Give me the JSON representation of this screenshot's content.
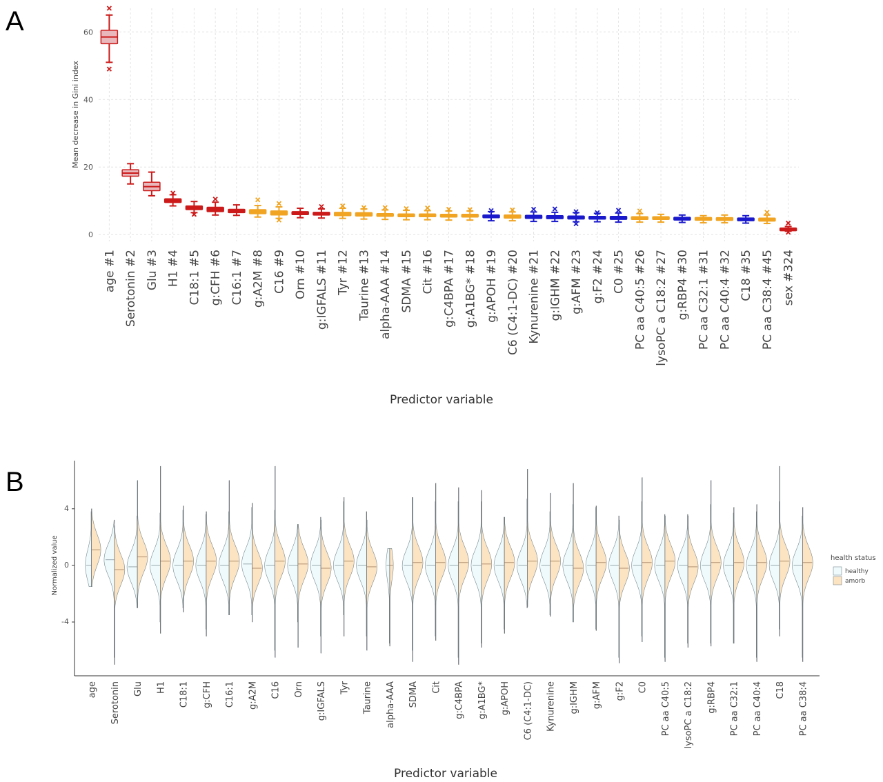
{
  "panels": [
    {
      "letter": "A"
    },
    {
      "letter": "B"
    }
  ],
  "chart_data": [
    {
      "type": "box",
      "panel": "A",
      "title": "",
      "xlabel": "Predictor variable",
      "ylabel": "Mean decrease in Gini index",
      "ylim": [
        -2,
        67
      ],
      "yticks": [
        0,
        20,
        40,
        60
      ],
      "grid": true,
      "colors": {
        "red": "#cc1a1a",
        "orange": "#f0a422",
        "blue": "#1a1acc",
        "fill": "#e8b8bc"
      },
      "categories": [
        "age #1",
        "Serotonin #2",
        "Glu #3",
        "H1 #4",
        "C18:1 #5",
        "g:CFH #6",
        "C16:1 #7",
        "g:A2M #8",
        "C16 #9",
        "Orn #10",
        "g:IGFALS #11",
        "Tyr #12",
        "Taurine #13",
        "alpha-AAA #14",
        "SDMA #15",
        "Cit #16",
        "g:C4BPA #17",
        "g:A1BG* #18",
        "g:APOH #19",
        "C6 (C4:1-DC) #20",
        "Kynurenine #21",
        "g:IGHM #22",
        "g:AFM #23",
        "g:F2 #24",
        "C0 #25",
        "PC aa C40:5 #26",
        "lysoPC a C18:2 #27",
        "g:RBP4 #30",
        "PC aa C32:1 #31",
        "PC aa C40:4 #32",
        "C18 #35",
        "PC aa C38:4 #45",
        "sex #324"
      ],
      "groups": [
        "red",
        "red",
        "red",
        "red",
        "red",
        "red",
        "red",
        "orange",
        "orange",
        "red",
        "red",
        "orange",
        "orange",
        "orange",
        "orange",
        "orange",
        "orange",
        "orange",
        "blue",
        "orange",
        "blue",
        "blue",
        "blue",
        "blue",
        "blue",
        "orange",
        "orange",
        "blue",
        "orange",
        "orange",
        "blue",
        "orange",
        "red"
      ],
      "boxes": [
        {
          "min": 51,
          "q1": 56.5,
          "median": 58.5,
          "q3": 60.5,
          "max": 65,
          "outliers": [
            49,
            67
          ]
        },
        {
          "min": 15,
          "q1": 17.3,
          "median": 18.2,
          "q3": 19.2,
          "max": 21,
          "outliers": []
        },
        {
          "min": 11.5,
          "q1": 13,
          "median": 14.2,
          "q3": 15.5,
          "max": 18.5,
          "outliers": []
        },
        {
          "min": 8.5,
          "q1": 9.5,
          "median": 10,
          "q3": 10.6,
          "max": 11.8,
          "outliers": [
            12.3
          ]
        },
        {
          "min": 6.5,
          "q1": 7.4,
          "median": 8,
          "q3": 8.5,
          "max": 9.8,
          "outliers": [
            6
          ]
        },
        {
          "min": 5.8,
          "q1": 6.8,
          "median": 7.5,
          "q3": 8.1,
          "max": 9.6,
          "outliers": [
            10.5
          ]
        },
        {
          "min": 5.7,
          "q1": 6.5,
          "median": 7,
          "q3": 7.5,
          "max": 8.8,
          "outliers": []
        },
        {
          "min": 5.2,
          "q1": 6.2,
          "median": 6.8,
          "q3": 7.4,
          "max": 8.6,
          "outliers": [
            10.3
          ]
        },
        {
          "min": 4.8,
          "q1": 5.8,
          "median": 6.4,
          "q3": 7,
          "max": 8.2,
          "outliers": [
            9.2,
            4.3
          ]
        },
        {
          "min": 5,
          "q1": 5.9,
          "median": 6.3,
          "q3": 6.8,
          "max": 7.8,
          "outliers": []
        },
        {
          "min": 4.9,
          "q1": 5.8,
          "median": 6.2,
          "q3": 6.6,
          "max": 7.6,
          "outliers": [
            8.3
          ]
        },
        {
          "min": 4.8,
          "q1": 5.6,
          "median": 6.1,
          "q3": 6.6,
          "max": 7.8,
          "outliers": [
            8.5
          ]
        },
        {
          "min": 4.6,
          "q1": 5.5,
          "median": 6,
          "q3": 6.5,
          "max": 7.6,
          "outliers": [
            8
          ]
        },
        {
          "min": 4.5,
          "q1": 5.4,
          "median": 5.8,
          "q3": 6.2,
          "max": 7.3,
          "outliers": [
            8
          ]
        },
        {
          "min": 4.4,
          "q1": 5.3,
          "median": 5.7,
          "q3": 6.1,
          "max": 7.2,
          "outliers": [
            7.7
          ]
        },
        {
          "min": 4.4,
          "q1": 5.3,
          "median": 5.7,
          "q3": 6.1,
          "max": 7.1,
          "outliers": [
            7.9
          ]
        },
        {
          "min": 4.3,
          "q1": 5.2,
          "median": 5.6,
          "q3": 6,
          "max": 7,
          "outliers": [
            7.5
          ]
        },
        {
          "min": 4.3,
          "q1": 5.2,
          "median": 5.6,
          "q3": 6,
          "max": 7,
          "outliers": [
            7.4
          ]
        },
        {
          "min": 4.1,
          "q1": 5,
          "median": 5.4,
          "q3": 5.8,
          "max": 6.8,
          "outliers": [
            7.1
          ]
        },
        {
          "min": 4.1,
          "q1": 4.9,
          "median": 5.3,
          "q3": 5.8,
          "max": 6.7,
          "outliers": [
            7.3
          ]
        },
        {
          "min": 3.9,
          "q1": 4.8,
          "median": 5.2,
          "q3": 5.7,
          "max": 6.7,
          "outliers": [
            7.5
          ]
        },
        {
          "min": 3.9,
          "q1": 4.7,
          "median": 5.1,
          "q3": 5.6,
          "max": 6.6,
          "outliers": [
            7.6
          ]
        },
        {
          "min": 3.8,
          "q1": 4.6,
          "median": 5,
          "q3": 5.5,
          "max": 6.5,
          "outliers": [
            6.8,
            3.2
          ]
        },
        {
          "min": 3.8,
          "q1": 4.6,
          "median": 5,
          "q3": 5.4,
          "max": 6.3,
          "outliers": [
            6.5
          ]
        },
        {
          "min": 3.7,
          "q1": 4.5,
          "median": 4.9,
          "q3": 5.4,
          "max": 6.4,
          "outliers": [
            7.2
          ]
        },
        {
          "min": 3.7,
          "q1": 4.5,
          "median": 4.9,
          "q3": 5.3,
          "max": 6.2,
          "outliers": [
            7
          ]
        },
        {
          "min": 3.7,
          "q1": 4.5,
          "median": 4.9,
          "q3": 5.3,
          "max": 6,
          "outliers": []
        },
        {
          "min": 3.6,
          "q1": 4.3,
          "median": 4.7,
          "q3": 5.1,
          "max": 5.8,
          "outliers": []
        },
        {
          "min": 3.5,
          "q1": 4.3,
          "median": 4.6,
          "q3": 5,
          "max": 5.6,
          "outliers": []
        },
        {
          "min": 3.5,
          "q1": 4.2,
          "median": 4.6,
          "q3": 5,
          "max": 5.8,
          "outliers": []
        },
        {
          "min": 3.4,
          "q1": 4.1,
          "median": 4.5,
          "q3": 4.9,
          "max": 5.6,
          "outliers": []
        },
        {
          "min": 3.3,
          "q1": 4,
          "median": 4.4,
          "q3": 4.9,
          "max": 5.8,
          "outliers": [
            6.6
          ]
        },
        {
          "min": 1,
          "q1": 1.3,
          "median": 1.5,
          "q3": 1.8,
          "max": 2.4,
          "outliers": [
            3.4,
            0.7
          ]
        }
      ]
    },
    {
      "type": "violin",
      "panel": "B",
      "title": "",
      "xlabel": "Predictor variable",
      "ylabel": "Normalized value",
      "ylim": [
        -7.8,
        7.4
      ],
      "yticks": [
        -4,
        0,
        4
      ],
      "grid": false,
      "legend": {
        "title": "health status",
        "position": "right",
        "entries": [
          {
            "name": "healthy",
            "color": "#eefafc"
          },
          {
            "name": "amorb",
            "color": "#fce3c2"
          }
        ]
      },
      "categories": [
        "age",
        "Serotonin",
        "Glu",
        "H1",
        "C18:1",
        "g:CFH",
        "C16:1",
        "g:A2M",
        "C16",
        "Orn",
        "g:IGFALS",
        "Tyr",
        "Taurine",
        "alpha-AAA",
        "SDMA",
        "Cit",
        "g:C4BPA",
        "g:A1BG*",
        "g:APOH",
        "C6 (C4:1-DC)",
        "Kynurenine",
        "g:IGHM",
        "g:AFM",
        "g:F2",
        "C0",
        "PC aa C40:5",
        "lysoPC a C18:2",
        "g:RBP4",
        "PC aa C32:1",
        "PC aa C40:4",
        "C18",
        "PC aa C38:4"
      ],
      "series": [
        {
          "name": "healthy",
          "medians": [
            0,
            0.4,
            -0.1,
            0,
            0,
            0,
            0,
            0.1,
            0,
            0,
            0,
            0,
            0,
            0,
            0,
            0,
            0,
            0,
            0,
            0,
            0,
            0,
            0,
            0,
            0,
            0,
            0,
            0,
            0,
            0,
            0,
            0
          ],
          "min": [
            -1.5,
            -6.5,
            -3,
            -4,
            -3,
            -4.5,
            -3.5,
            -3.5,
            -6,
            -4,
            -5,
            -3.5,
            -5,
            -5.5,
            -6,
            -5,
            -6.5,
            -5.5,
            -4.5,
            -3,
            -3.5,
            -4,
            -4.5,
            -6.5,
            -5,
            -6.5,
            -5.5,
            -5.5,
            -5.5,
            -6.5,
            -4.5,
            -6.5
          ],
          "max": [
            3.8,
            3.2,
            3.5,
            3.7,
            3.9,
            3.6,
            3.8,
            4.1,
            3.9,
            2.9,
            3.4,
            4.5,
            3.8,
            1.2,
            4.8,
            4.5,
            4.5,
            4.5,
            3.4,
            4.7,
            3.8,
            4.3,
            4.1,
            3.5,
            4.5,
            3.6,
            3.6,
            4.3,
            3.7,
            3.8,
            4.5,
            3.5
          ],
          "spread": [
            0.6,
            1.0,
            1.0,
            1.0,
            1.0,
            1.0,
            1.0,
            1.0,
            1.0,
            1.0,
            1.0,
            1.0,
            1.0,
            0.35,
            1.0,
            1.0,
            1.0,
            1.0,
            1.0,
            1.0,
            1.0,
            1.0,
            1.0,
            1.0,
            1.0,
            1.0,
            1.0,
            1.0,
            1.0,
            1.0,
            1.0,
            1.0
          ]
        },
        {
          "name": "amorb",
          "medians": [
            1.1,
            -0.3,
            0.6,
            0.3,
            0.3,
            0.3,
            0.3,
            -0.2,
            0.3,
            0.1,
            -0.2,
            0.3,
            -0.1,
            0,
            0.2,
            0.2,
            0.2,
            0.1,
            0.2,
            0.3,
            0.3,
            -0.2,
            0.2,
            -0.2,
            0.2,
            0.3,
            -0.1,
            0.2,
            0.2,
            0.2,
            0.3,
            0.2
          ],
          "min": [
            -1.5,
            -7,
            -3,
            -4.8,
            -3.3,
            -5,
            -3.5,
            -4,
            -6.5,
            -5.8,
            -6.2,
            -5,
            -6,
            -5.7,
            -6.8,
            -5.3,
            -7,
            -5.8,
            -4.8,
            -2.9,
            -3.6,
            -4,
            -4.6,
            -6.9,
            -5.4,
            -6.8,
            -5.8,
            -5.7,
            -5.5,
            -6.8,
            -5,
            -6.8
          ],
          "max": [
            4,
            2.8,
            6,
            7,
            4.2,
            3.8,
            6,
            4.4,
            7,
            2.9,
            3.2,
            4.8,
            3.2,
            1.2,
            4.8,
            5.8,
            5.5,
            5.3,
            3.4,
            6.8,
            5.1,
            5.8,
            4.2,
            3.2,
            6.2,
            3.5,
            3.5,
            6,
            4.1,
            4.3,
            7,
            4.1
          ],
          "spread": [
            0.9,
            1.0,
            1.0,
            1.0,
            1.0,
            1.0,
            1.0,
            1.0,
            1.0,
            1.0,
            1.0,
            1.0,
            1.0,
            0.35,
            1.0,
            1.0,
            1.0,
            1.0,
            1.0,
            1.0,
            1.0,
            1.0,
            1.0,
            1.0,
            1.0,
            1.0,
            1.0,
            1.0,
            1.0,
            1.0,
            1.0,
            1.0
          ]
        }
      ]
    }
  ]
}
